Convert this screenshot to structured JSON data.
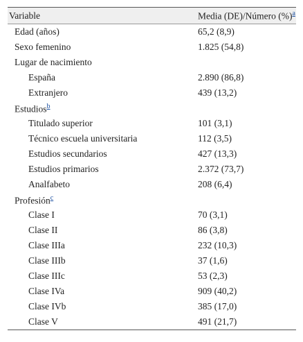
{
  "table": {
    "header": {
      "variable": "Variable",
      "value": "Media (DE)/Número (%)",
      "note": "a"
    },
    "rows": [
      {
        "label": "Edad (años)",
        "value": "65,2 (8,9)"
      },
      {
        "label": "Sexo femenino",
        "value": "1.825 (54,8)"
      },
      {
        "label": "Lugar de nacimiento",
        "children": [
          {
            "label": "España",
            "value": "2.890 (86,8)"
          },
          {
            "label": "Extranjero",
            "value": "439 (13,2)"
          }
        ]
      },
      {
        "label": "Estudios",
        "note": "b",
        "children": [
          {
            "label": "Titulado superior",
            "value": "101 (3,1)"
          },
          {
            "label": "Técnico escuela universitaria",
            "value": "112 (3,5)"
          },
          {
            "label": "Estudios secundarios",
            "value": "427 (13,3)"
          },
          {
            "label": "Estudios primarios",
            "value": "2.372 (73,7)"
          },
          {
            "label": "Analfabeto",
            "value": "208 (6,4)"
          }
        ]
      },
      {
        "label": "Profesión",
        "note": "c",
        "children": [
          {
            "label": "Clase I",
            "value": "70 (3,1)"
          },
          {
            "label": "Clase II",
            "value": "86 (3,8)"
          },
          {
            "label": "Clase IIIa",
            "value": "232 (10,3)"
          },
          {
            "label": "Clase IIIb",
            "value": "37 (1,6)"
          },
          {
            "label": "Clase IIIc",
            "value": "53 (2,3)"
          },
          {
            "label": "Clase IVa",
            "value": "909 (40,2)"
          },
          {
            "label": "Clase IVb",
            "value": "385 (17,0)"
          },
          {
            "label": "Clase V",
            "value": "491 (21,7)"
          }
        ]
      }
    ]
  }
}
